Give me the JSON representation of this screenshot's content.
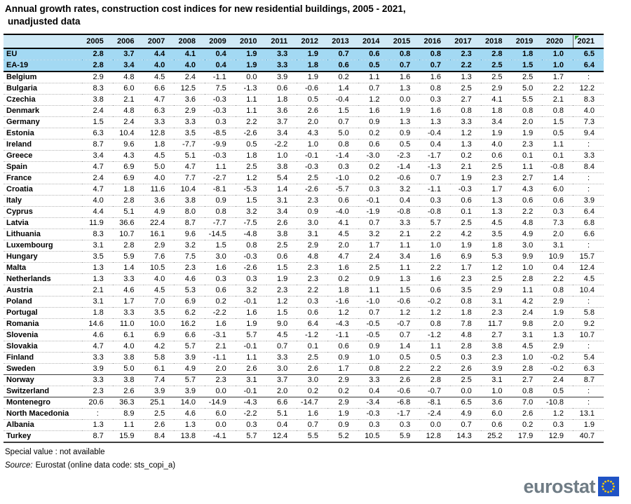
{
  "title": {
    "line1": "Annual growth rates, construction cost indices for new residential buildings, 2005 - 2021,",
    "line2": "unadjusted data"
  },
  "chart_data": {
    "type": "table",
    "title": "Annual growth rates, construction cost indices for new residential buildings, 2005 - 2021, unadjusted data",
    "columns": [
      "",
      "2005",
      "2006",
      "2007",
      "2008",
      "2009",
      "2010",
      "2011",
      "2012",
      "2013",
      "2014",
      "2015",
      "2016",
      "2017",
      "2018",
      "2019",
      "2020",
      "2021"
    ],
    "flagged_column": "2021",
    "rows": [
      {
        "label": "EU",
        "group": "aggregate",
        "values": [
          "2.8",
          "3.7",
          "4.4",
          "4.1",
          "0.4",
          "1.9",
          "3.3",
          "1.9",
          "0.7",
          "0.6",
          "0.8",
          "0.8",
          "2.3",
          "2.8",
          "1.8",
          "1.0",
          "6.5"
        ]
      },
      {
        "label": "EA-19",
        "group": "aggregate",
        "values": [
          "2.8",
          "3.4",
          "4.0",
          "4.0",
          "0.4",
          "1.9",
          "3.3",
          "1.8",
          "0.6",
          "0.5",
          "0.7",
          "0.7",
          "2.2",
          "2.5",
          "1.5",
          "1.0",
          "6.4"
        ]
      },
      {
        "label": "Belgium",
        "group": "eu",
        "values": [
          "2.9",
          "4.8",
          "4.5",
          "2.4",
          "-1.1",
          "0.0",
          "3.9",
          "1.9",
          "0.2",
          "1.1",
          "1.6",
          "1.6",
          "1.3",
          "2.5",
          "2.5",
          "1.7",
          ":"
        ]
      },
      {
        "label": "Bulgaria",
        "group": "eu",
        "values": [
          "8.3",
          "6.0",
          "6.6",
          "12.5",
          "7.5",
          "-1.3",
          "0.6",
          "-0.6",
          "1.4",
          "0.7",
          "1.3",
          "0.8",
          "2.5",
          "2.9",
          "5.0",
          "2.2",
          "12.2"
        ]
      },
      {
        "label": "Czechia",
        "group": "eu",
        "values": [
          "3.8",
          "2.1",
          "4.7",
          "3.6",
          "-0.3",
          "1.1",
          "1.8",
          "0.5",
          "-0.4",
          "1.2",
          "0.0",
          "0.3",
          "2.7",
          "4.1",
          "5.5",
          "2.1",
          "8.3"
        ]
      },
      {
        "label": "Denmark",
        "group": "eu",
        "values": [
          "2.4",
          "4.8",
          "6.3",
          "2.9",
          "-0.3",
          "1.1",
          "3.6",
          "2.6",
          "1.5",
          "1.6",
          "1.9",
          "1.6",
          "0.8",
          "1.8",
          "0.8",
          "0.8",
          "4.0"
        ]
      },
      {
        "label": "Germany",
        "group": "eu",
        "values": [
          "1.5",
          "2.4",
          "3.3",
          "3.3",
          "0.3",
          "2.2",
          "3.7",
          "2.0",
          "0.7",
          "0.9",
          "1.3",
          "1.3",
          "3.3",
          "3.4",
          "2.0",
          "1.5",
          "7.3"
        ]
      },
      {
        "label": "Estonia",
        "group": "eu",
        "values": [
          "6.3",
          "10.4",
          "12.8",
          "3.5",
          "-8.5",
          "-2.6",
          "3.4",
          "4.3",
          "5.0",
          "0.2",
          "0.9",
          "-0.4",
          "1.2",
          "1.9",
          "1.9",
          "0.5",
          "9.4"
        ]
      },
      {
        "label": "Ireland",
        "group": "eu",
        "values": [
          "8.7",
          "9.6",
          "1.8",
          "-7.7",
          "-9.9",
          "0.5",
          "-2.2",
          "1.0",
          "0.8",
          "0.6",
          "0.5",
          "0.4",
          "1.3",
          "4.0",
          "2.3",
          "1.1",
          ":"
        ]
      },
      {
        "label": "Greece",
        "group": "eu",
        "values": [
          "3.4",
          "4.3",
          "4.5",
          "5.1",
          "-0.3",
          "1.8",
          "1.0",
          "-0.1",
          "-1.4",
          "-3.0",
          "-2.3",
          "-1.7",
          "0.2",
          "0.6",
          "0.1",
          "0.1",
          "3.3"
        ]
      },
      {
        "label": "Spain",
        "group": "eu",
        "values": [
          "4.7",
          "6.9",
          "5.0",
          "4.7",
          "1.1",
          "2.5",
          "3.8",
          "-0.3",
          "0.3",
          "0.2",
          "-1.4",
          "-1.3",
          "2.1",
          "2.5",
          "1.1",
          "-0.8",
          "8.4"
        ]
      },
      {
        "label": "France",
        "group": "eu",
        "values": [
          "2.4",
          "6.9",
          "4.0",
          "7.7",
          "-2.7",
          "1.2",
          "5.4",
          "2.5",
          "-1.0",
          "0.2",
          "-0.6",
          "0.7",
          "1.9",
          "2.3",
          "2.7",
          "1.4",
          ":"
        ]
      },
      {
        "label": "Croatia",
        "group": "eu",
        "values": [
          "4.7",
          "1.8",
          "11.6",
          "10.4",
          "-8.1",
          "-5.3",
          "1.4",
          "-2.6",
          "-5.7",
          "0.3",
          "3.2",
          "-1.1",
          "-0.3",
          "1.7",
          "4.3",
          "6.0",
          ":"
        ]
      },
      {
        "label": "Italy",
        "group": "eu",
        "values": [
          "4.0",
          "2.8",
          "3.6",
          "3.8",
          "0.9",
          "1.5",
          "3.1",
          "2.3",
          "0.6",
          "-0.1",
          "0.4",
          "0.3",
          "0.6",
          "1.3",
          "0.6",
          "0.6",
          "3.9"
        ]
      },
      {
        "label": "Cyprus",
        "group": "eu",
        "values": [
          "4.4",
          "5.1",
          "4.9",
          "8.0",
          "0.8",
          "3.2",
          "3.4",
          "0.9",
          "-4.0",
          "-1.9",
          "-0.8",
          "-0.8",
          "0.1",
          "1.3",
          "2.2",
          "0.3",
          "6.4"
        ]
      },
      {
        "label": "Latvia",
        "group": "eu",
        "values": [
          "11.9",
          "36.6",
          "22.4",
          "8.7",
          "-7.7",
          "-7.5",
          "2.6",
          "3.0",
          "4.1",
          "0.7",
          "3.3",
          "5.7",
          "2.5",
          "4.5",
          "4.8",
          "7.3",
          "6.8"
        ]
      },
      {
        "label": "Lithuania",
        "group": "eu",
        "values": [
          "8.3",
          "10.7",
          "16.1",
          "9.6",
          "-14.5",
          "-4.8",
          "3.8",
          "3.1",
          "4.5",
          "3.2",
          "2.1",
          "2.2",
          "4.2",
          "3.5",
          "4.9",
          "2.0",
          "6.6"
        ]
      },
      {
        "label": "Luxembourg",
        "group": "eu",
        "values": [
          "3.1",
          "2.8",
          "2.9",
          "3.2",
          "1.5",
          "0.8",
          "2.5",
          "2.9",
          "2.0",
          "1.7",
          "1.1",
          "1.0",
          "1.9",
          "1.8",
          "3.0",
          "3.1",
          ":"
        ]
      },
      {
        "label": "Hungary",
        "group": "eu",
        "values": [
          "3.5",
          "5.9",
          "7.6",
          "7.5",
          "3.0",
          "-0.3",
          "0.6",
          "4.8",
          "4.7",
          "2.4",
          "3.4",
          "1.6",
          "6.9",
          "5.3",
          "9.9",
          "10.9",
          "15.7"
        ]
      },
      {
        "label": "Malta",
        "group": "eu",
        "values": [
          "1.3",
          "1.4",
          "10.5",
          "2.3",
          "1.6",
          "-2.6",
          "1.5",
          "2.3",
          "1.6",
          "2.5",
          "1.1",
          "2.2",
          "1.7",
          "1.2",
          "1.0",
          "0.4",
          "12.4"
        ]
      },
      {
        "label": "Netherlands",
        "group": "eu",
        "values": [
          "1.3",
          "3.3",
          "4.0",
          "4.6",
          "0.3",
          "0.3",
          "1.9",
          "2.3",
          "0.2",
          "0.9",
          "1.3",
          "1.6",
          "2.3",
          "2.5",
          "2.8",
          "2.2",
          "4.5"
        ]
      },
      {
        "label": "Austria",
        "group": "eu",
        "values": [
          "2.1",
          "4.6",
          "4.5",
          "5.3",
          "0.6",
          "3.2",
          "2.3",
          "2.2",
          "1.8",
          "1.1",
          "1.5",
          "0.6",
          "3.5",
          "2.9",
          "1.1",
          "0.8",
          "10.4"
        ]
      },
      {
        "label": "Poland",
        "group": "eu",
        "values": [
          "3.1",
          "1.7",
          "7.0",
          "6.9",
          "0.2",
          "-0.1",
          "1.2",
          "0.3",
          "-1.6",
          "-1.0",
          "-0.6",
          "-0.2",
          "0.8",
          "3.1",
          "4.2",
          "2.9",
          ":"
        ]
      },
      {
        "label": "Portugal",
        "group": "eu",
        "values": [
          "1.8",
          "3.3",
          "3.5",
          "6.2",
          "-2.2",
          "1.6",
          "1.5",
          "0.6",
          "1.2",
          "0.7",
          "1.2",
          "1.2",
          "1.8",
          "2.3",
          "2.4",
          "1.9",
          "5.8"
        ]
      },
      {
        "label": "Romania",
        "group": "eu",
        "values": [
          "14.6",
          "11.0",
          "10.0",
          "16.2",
          "1.6",
          "1.9",
          "9.0",
          "6.4",
          "-4.3",
          "-0.5",
          "-0.7",
          "0.8",
          "7.8",
          "11.7",
          "9.8",
          "2.0",
          "9.2"
        ]
      },
      {
        "label": "Slovenia",
        "group": "eu",
        "values": [
          "4.6",
          "6.1",
          "6.9",
          "6.6",
          "-3.1",
          "5.7",
          "4.5",
          "-1.2",
          "-1.1",
          "-0.5",
          "0.7",
          "-1.2",
          "4.8",
          "2.7",
          "3.1",
          "1.3",
          "10.7"
        ]
      },
      {
        "label": "Slovakia",
        "group": "eu",
        "values": [
          "4.7",
          "4.0",
          "4.2",
          "5.7",
          "2.1",
          "-0.1",
          "0.7",
          "0.1",
          "0.6",
          "0.9",
          "1.4",
          "1.1",
          "2.8",
          "3.8",
          "4.5",
          "2.9",
          ":"
        ]
      },
      {
        "label": "Finland",
        "group": "eu",
        "values": [
          "3.3",
          "3.8",
          "5.8",
          "3.9",
          "-1.1",
          "1.1",
          "3.3",
          "2.5",
          "0.9",
          "1.0",
          "0.5",
          "0.5",
          "0.3",
          "2.3",
          "1.0",
          "-0.2",
          "5.4"
        ]
      },
      {
        "label": "Sweden",
        "group": "eu",
        "values": [
          "3.9",
          "5.0",
          "6.1",
          "4.9",
          "2.0",
          "2.6",
          "3.0",
          "2.6",
          "1.7",
          "0.8",
          "2.2",
          "2.2",
          "2.6",
          "3.9",
          "2.8",
          "-0.2",
          "6.3"
        ]
      },
      {
        "label": "Norway",
        "group": "efta",
        "values": [
          "3.3",
          "3.8",
          "7.4",
          "5.7",
          "2.3",
          "3.1",
          "3.7",
          "3.0",
          "2.9",
          "3.3",
          "2.6",
          "2.8",
          "2.5",
          "3.1",
          "2.7",
          "2.4",
          "8.7"
        ]
      },
      {
        "label": "Switzerland",
        "group": "efta",
        "values": [
          "2.3",
          "2.6",
          "3.9",
          "3.9",
          "0.0",
          "-0.1",
          "2.0",
          "0.2",
          "0.2",
          "0.4",
          "-0.6",
          "-0.7",
          "0.0",
          "1.0",
          "0.8",
          "0.5",
          ":"
        ]
      },
      {
        "label": "Montenegro",
        "group": "candidate",
        "values": [
          "20.6",
          "36.3",
          "25.1",
          "14.0",
          "-14.9",
          "-4.3",
          "6.6",
          "-14.7",
          "2.9",
          "-3.4",
          "-6.8",
          "-8.1",
          "6.5",
          "3.6",
          "7.0",
          "-10.8",
          ":"
        ]
      },
      {
        "label": "North Macedonia",
        "group": "candidate",
        "values": [
          ":",
          "8.9",
          "2.5",
          "4.6",
          "6.0",
          "-2.2",
          "5.1",
          "1.6",
          "1.9",
          "-0.3",
          "-1.7",
          "-2.4",
          "4.9",
          "6.0",
          "2.6",
          "1.2",
          "13.1"
        ]
      },
      {
        "label": "Albania",
        "group": "candidate",
        "values": [
          "1.3",
          "1.1",
          "2.6",
          "1.3",
          "0.0",
          "0.3",
          "0.4",
          "0.7",
          "0.9",
          "0.3",
          "0.3",
          "0.0",
          "0.7",
          "0.6",
          "0.2",
          "0.3",
          "1.9"
        ]
      },
      {
        "label": "Turkey",
        "group": "candidate",
        "values": [
          "8.7",
          "15.9",
          "8.4",
          "13.8",
          "-4.1",
          "5.7",
          "12.4",
          "5.5",
          "5.2",
          "10.5",
          "5.9",
          "12.8",
          "14.3",
          "25.2",
          "17.9",
          "12.9",
          "40.7"
        ]
      }
    ]
  },
  "footnotes": {
    "special_value": "Special value : not available",
    "source_label": "Source:",
    "source_text": "Eurostat (online data code: sts_copi_a)"
  },
  "logo": {
    "text": "eurostat"
  },
  "colors": {
    "header_bg": "#cfe9f6",
    "aggregate_row_bg": "#a3d9f3",
    "flag_marker_green": "#2f9e2f",
    "logo_text_gray": "#6f7c85",
    "eu_flag_blue": "#2053c5",
    "eu_star_yellow": "#ffcc00"
  }
}
